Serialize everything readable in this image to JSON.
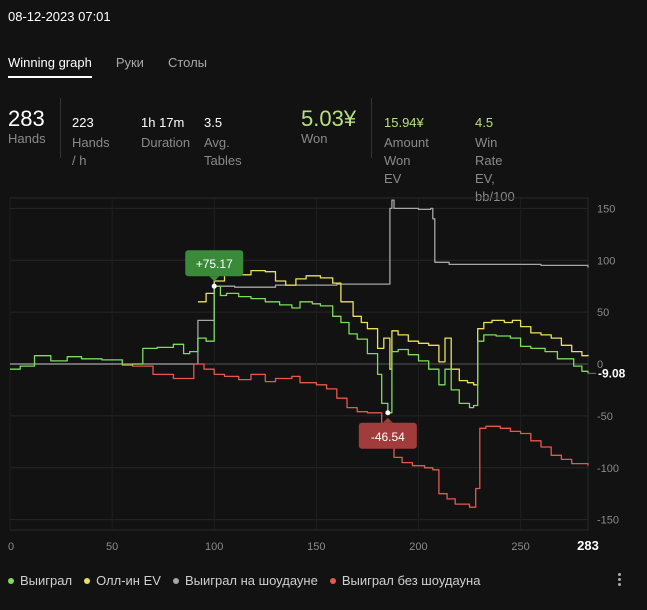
{
  "header": {
    "datetime": "08-12-2023 07:01"
  },
  "tabs": [
    {
      "label": "Winning graph",
      "active": true
    },
    {
      "label": "Руки",
      "active": false
    },
    {
      "label": "Столы",
      "active": false
    }
  ],
  "stats": {
    "hands": {
      "value": "283",
      "label": "Hands"
    },
    "hands_per_hour": {
      "value": "223",
      "label": "Hands / h"
    },
    "duration": {
      "value": "1h 17m",
      "label": "Duration"
    },
    "avg_tables": {
      "value": "3.5",
      "label": "Avg. Tables"
    },
    "won": {
      "value": "5.03¥",
      "label": "Won"
    },
    "amount_won_ev": {
      "value": "15.94¥",
      "label_line1": "Amount Won",
      "label_line2": "EV"
    },
    "win_rate_ev": {
      "value": "4.5",
      "label_line1": "Win Rate EV,",
      "label_line2": "bb/100"
    }
  },
  "colors": {
    "won": "#7ddc5a",
    "allin_ev": "#e9e15a",
    "showdown": "#a6a6a6",
    "non_showdown": "#e8574f",
    "badge_green": "#3a8a3a",
    "badge_red": "#a23b3b"
  },
  "chart_data": {
    "type": "line",
    "xlim": [
      0,
      283
    ],
    "ylim": [
      -160,
      160
    ],
    "x_ticks": [
      "0",
      "50",
      "100",
      "150",
      "200",
      "250"
    ],
    "x_end_label": "283",
    "y_ticks": [
      "150",
      "100",
      "50",
      "0",
      "-50",
      "-100",
      "-150"
    ],
    "final_value_label": "-9.08",
    "max_label": "+75.17",
    "min_label": "-46.54",
    "series": [
      {
        "name": "Выиграл",
        "color": "#7ddc5a",
        "points": [
          [
            0,
            -5
          ],
          [
            5,
            -2
          ],
          [
            12,
            8
          ],
          [
            20,
            3
          ],
          [
            28,
            7
          ],
          [
            35,
            5
          ],
          [
            45,
            4
          ],
          [
            52,
            4
          ],
          [
            55,
            -1
          ],
          [
            60,
            0
          ],
          [
            65,
            15
          ],
          [
            72,
            16
          ],
          [
            80,
            19
          ],
          [
            85,
            10
          ],
          [
            88,
            12
          ],
          [
            92,
            25
          ],
          [
            96,
            22
          ],
          [
            100,
            75
          ],
          [
            103,
            66
          ],
          [
            106,
            68
          ],
          [
            112,
            65
          ],
          [
            118,
            63
          ],
          [
            125,
            60
          ],
          [
            132,
            57
          ],
          [
            138,
            54
          ],
          [
            142,
            60
          ],
          [
            148,
            58
          ],
          [
            152,
            56
          ],
          [
            158,
            46
          ],
          [
            162,
            40
          ],
          [
            166,
            29
          ],
          [
            170,
            24
          ],
          [
            175,
            10
          ],
          [
            180,
            -10
          ],
          [
            182,
            -38
          ],
          [
            185,
            -47
          ],
          [
            187,
            12
          ],
          [
            190,
            14
          ],
          [
            195,
            9
          ],
          [
            200,
            3
          ],
          [
            205,
            -5
          ],
          [
            210,
            -20
          ],
          [
            213,
            -5
          ],
          [
            216,
            -25
          ],
          [
            220,
            -38
          ],
          [
            225,
            -42
          ],
          [
            227,
            -40
          ],
          [
            229,
            22
          ],
          [
            232,
            28
          ],
          [
            238,
            27
          ],
          [
            245,
            25
          ],
          [
            250,
            17
          ],
          [
            255,
            15
          ],
          [
            262,
            12
          ],
          [
            268,
            5
          ],
          [
            272,
            5
          ],
          [
            276,
            -2
          ],
          [
            280,
            -7
          ],
          [
            283,
            -9
          ]
        ]
      },
      {
        "name": "Олл-ин EV",
        "color": "#e9e15a",
        "points": [
          [
            92,
            60
          ],
          [
            96,
            68
          ],
          [
            100,
            80
          ],
          [
            105,
            88
          ],
          [
            112,
            86
          ],
          [
            118,
            90
          ],
          [
            125,
            89
          ],
          [
            130,
            80
          ],
          [
            135,
            76
          ],
          [
            140,
            82
          ],
          [
            145,
            85
          ],
          [
            152,
            83
          ],
          [
            158,
            78
          ],
          [
            162,
            60
          ],
          [
            168,
            46
          ],
          [
            172,
            40
          ],
          [
            175,
            34
          ],
          [
            180,
            15
          ],
          [
            183,
            25
          ],
          [
            186,
            -5
          ],
          [
            187,
            32
          ],
          [
            190,
            28
          ],
          [
            195,
            22
          ],
          [
            200,
            20
          ],
          [
            205,
            18
          ],
          [
            210,
            2
          ],
          [
            213,
            25
          ],
          [
            216,
            -5
          ],
          [
            220,
            -16
          ],
          [
            224,
            -18
          ],
          [
            227,
            -20
          ],
          [
            229,
            34
          ],
          [
            232,
            40
          ],
          [
            236,
            42
          ],
          [
            242,
            40
          ],
          [
            246,
            42
          ],
          [
            250,
            36
          ],
          [
            255,
            30
          ],
          [
            260,
            28
          ],
          [
            265,
            25
          ],
          [
            270,
            18
          ],
          [
            275,
            12
          ],
          [
            280,
            8
          ],
          [
            283,
            9
          ]
        ]
      },
      {
        "name": "Выиграл на шоудауне",
        "color": "#a6a6a6",
        "points": [
          [
            0,
            0
          ],
          [
            50,
            0
          ],
          [
            55,
            0
          ],
          [
            70,
            0
          ],
          [
            88,
            0
          ],
          [
            92,
            42
          ],
          [
            98,
            42
          ],
          [
            100,
            75
          ],
          [
            110,
            74
          ],
          [
            130,
            76
          ],
          [
            160,
            77
          ],
          [
            180,
            77
          ],
          [
            185,
            77
          ],
          [
            186,
            150
          ],
          [
            187,
            158
          ],
          [
            188,
            150
          ],
          [
            200,
            149
          ],
          [
            206,
            150
          ],
          [
            207,
            140
          ],
          [
            208,
            98
          ],
          [
            215,
            96
          ],
          [
            240,
            96
          ],
          [
            260,
            95
          ],
          [
            275,
            95
          ],
          [
            283,
            93
          ]
        ]
      },
      {
        "name": "Выиграл без шоудауна",
        "color": "#e8574f",
        "points": [
          [
            55,
            0
          ],
          [
            60,
            -2
          ],
          [
            70,
            -10
          ],
          [
            80,
            -14
          ],
          [
            90,
            0
          ],
          [
            95,
            -5
          ],
          [
            100,
            -10
          ],
          [
            105,
            -12
          ],
          [
            112,
            -15
          ],
          [
            118,
            -10
          ],
          [
            125,
            -17
          ],
          [
            130,
            -14
          ],
          [
            138,
            -12
          ],
          [
            142,
            -18
          ],
          [
            150,
            -20
          ],
          [
            155,
            -24
          ],
          [
            160,
            -33
          ],
          [
            165,
            -42
          ],
          [
            170,
            -46
          ],
          [
            175,
            -47
          ],
          [
            180,
            -47
          ],
          [
            182,
            -60
          ],
          [
            185,
            -78
          ],
          [
            188,
            -90
          ],
          [
            192,
            -95
          ],
          [
            197,
            -98
          ],
          [
            203,
            -100
          ],
          [
            207,
            -102
          ],
          [
            210,
            -125
          ],
          [
            214,
            -130
          ],
          [
            218,
            -135
          ],
          [
            225,
            -138
          ],
          [
            228,
            -120
          ],
          [
            230,
            -62
          ],
          [
            233,
            -60
          ],
          [
            240,
            -62
          ],
          [
            245,
            -65
          ],
          [
            250,
            -67
          ],
          [
            255,
            -74
          ],
          [
            260,
            -80
          ],
          [
            265,
            -88
          ],
          [
            270,
            -92
          ],
          [
            275,
            -96
          ],
          [
            283,
            -98
          ]
        ]
      }
    ],
    "legend_placement": "bottom",
    "grid": true
  },
  "menu": {
    "icon": "more-vertical-icon"
  }
}
